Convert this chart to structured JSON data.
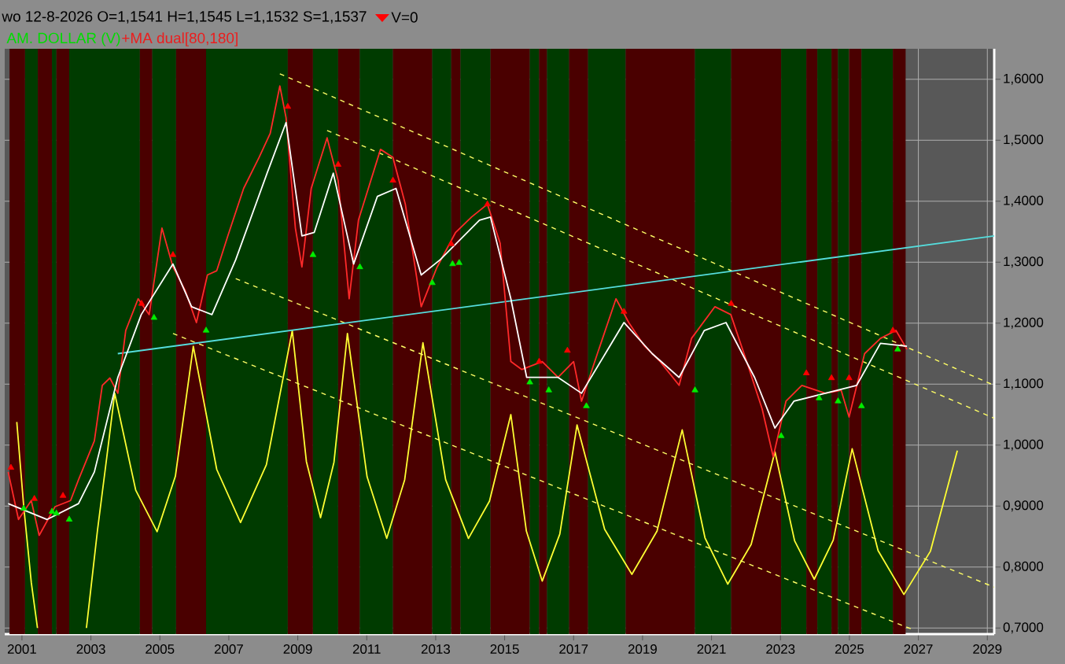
{
  "chart_data": {
    "type": "line",
    "title": "wo 12-8-2026  O=1,1541  H=1,1545  L=1,1532  S=1,1537",
    "subtitle": "AM. DOLLAR (V)",
    "annotations": [
      "V=0",
      "+MA dual[80,180]"
    ],
    "xlim": [
      2000.5,
      2029.2
    ],
    "ylim": [
      0.69,
      1.65
    ],
    "xticks": [
      2001,
      2003,
      2005,
      2007,
      2009,
      2011,
      2013,
      2015,
      2017,
      2019,
      2021,
      2023,
      2025,
      2027,
      2029
    ],
    "yticks": [
      {
        "value": 0.7,
        "label": "0,7000"
      },
      {
        "value": 0.8,
        "label": "0,8000"
      },
      {
        "value": 0.9,
        "label": "0,9000"
      },
      {
        "value": 1.0,
        "label": "1,0000"
      },
      {
        "value": 1.1,
        "label": "1,1000"
      },
      {
        "value": 1.2,
        "label": "1,2000"
      },
      {
        "value": 1.3,
        "label": "1,3000"
      },
      {
        "value": 1.4,
        "label": "1,4000"
      },
      {
        "value": 1.5,
        "label": "1,5000"
      },
      {
        "value": 1.6,
        "label": "1,6000"
      }
    ],
    "grid": true,
    "bands": [
      {
        "axis": "x",
        "from": 2000.64,
        "to": 2001.09,
        "color": "#4a0000"
      },
      {
        "axis": "x",
        "from": 2001.09,
        "to": 2001.46,
        "color": "#003b00"
      },
      {
        "axis": "x",
        "from": 2001.46,
        "to": 2001.87,
        "color": "#4a0000"
      },
      {
        "axis": "x",
        "from": 2001.87,
        "to": 2002.0,
        "color": "#003b00"
      },
      {
        "axis": "x",
        "from": 2002.0,
        "to": 2002.37,
        "color": "#4a0000"
      },
      {
        "axis": "x",
        "from": 2002.37,
        "to": 2004.42,
        "color": "#003b00"
      },
      {
        "axis": "x",
        "from": 2004.42,
        "to": 2004.78,
        "color": "#4a0000"
      },
      {
        "axis": "x",
        "from": 2004.78,
        "to": 2005.47,
        "color": "#003b00"
      },
      {
        "axis": "x",
        "from": 2005.47,
        "to": 2006.34,
        "color": "#4a0000"
      },
      {
        "axis": "x",
        "from": 2006.34,
        "to": 2008.71,
        "color": "#003b00"
      },
      {
        "axis": "x",
        "from": 2008.71,
        "to": 2009.44,
        "color": "#4a0000"
      },
      {
        "axis": "x",
        "from": 2009.44,
        "to": 2010.17,
        "color": "#003b00"
      },
      {
        "axis": "x",
        "from": 2010.17,
        "to": 2010.8,
        "color": "#4a0000"
      },
      {
        "axis": "x",
        "from": 2010.8,
        "to": 2011.76,
        "color": "#003b00"
      },
      {
        "axis": "x",
        "from": 2011.76,
        "to": 2012.9,
        "color": "#4a0000"
      },
      {
        "axis": "x",
        "from": 2012.9,
        "to": 2013.45,
        "color": "#003b00"
      },
      {
        "axis": "x",
        "from": 2013.45,
        "to": 2013.72,
        "color": "#4a0000"
      },
      {
        "axis": "x",
        "from": 2013.72,
        "to": 2014.59,
        "color": "#003b00"
      },
      {
        "axis": "x",
        "from": 2014.59,
        "to": 2015.73,
        "color": "#4a0000"
      },
      {
        "axis": "x",
        "from": 2015.73,
        "to": 2016.0,
        "color": "#003b00"
      },
      {
        "axis": "x",
        "from": 2016.0,
        "to": 2016.23,
        "color": "#4a0000"
      },
      {
        "axis": "x",
        "from": 2016.23,
        "to": 2016.87,
        "color": "#003b00"
      },
      {
        "axis": "x",
        "from": 2016.87,
        "to": 2017.42,
        "color": "#4a0000"
      },
      {
        "axis": "x",
        "from": 2017.42,
        "to": 2018.51,
        "color": "#003b00"
      },
      {
        "axis": "x",
        "from": 2018.51,
        "to": 2020.52,
        "color": "#4a0000"
      },
      {
        "axis": "x",
        "from": 2020.52,
        "to": 2021.57,
        "color": "#003b00"
      },
      {
        "axis": "x",
        "from": 2021.57,
        "to": 2023.02,
        "color": "#4a0000"
      },
      {
        "axis": "x",
        "from": 2023.02,
        "to": 2023.75,
        "color": "#003b00"
      },
      {
        "axis": "x",
        "from": 2023.75,
        "to": 2024.07,
        "color": "#4a0000"
      },
      {
        "axis": "x",
        "from": 2024.07,
        "to": 2024.48,
        "color": "#003b00"
      },
      {
        "axis": "x",
        "from": 2024.48,
        "to": 2024.67,
        "color": "#4a0000"
      },
      {
        "axis": "x",
        "from": 2024.67,
        "to": 2024.99,
        "color": "#003b00"
      },
      {
        "axis": "x",
        "from": 2024.99,
        "to": 2025.35,
        "color": "#4a0000"
      },
      {
        "axis": "x",
        "from": 2025.35,
        "to": 2026.26,
        "color": "#003b00"
      },
      {
        "axis": "x",
        "from": 2026.26,
        "to": 2026.63,
        "color": "#4a0000"
      }
    ],
    "series": [
      {
        "color": "#ffff33",
        "line_style": "solid",
        "x": [
          2000.85,
          2001.05,
          2001.27,
          2001.45,
          2002.2,
          2002.87,
          2003.19,
          2003.46,
          2003.69,
          2004.3,
          2004.92,
          2005.45,
          2005.97,
          2006.65,
          2007.34,
          2008.09,
          2008.84,
          2009.25,
          2009.66,
          2010.05,
          2010.44,
          2011.01,
          2011.58,
          2012.1,
          2012.63,
          2013.29,
          2013.95,
          2014.56,
          2015.18,
          2015.63,
          2016.09,
          2016.6,
          2017.1,
          2017.9,
          2018.69,
          2019.42,
          2020.15,
          2020.81,
          2021.47,
          2022.15,
          2022.84,
          2023.41,
          2023.98,
          2024.53,
          2025.08,
          2025.83,
          2026.58,
          2027.35,
          2028.13
        ],
        "values": [
          1.038,
          0.9,
          0.775,
          0.7,
          null,
          0.7,
          0.86,
          0.98,
          1.085,
          0.926,
          0.858,
          0.949,
          1.162,
          0.96,
          0.873,
          0.968,
          1.188,
          0.973,
          0.881,
          0.972,
          1.183,
          0.948,
          0.847,
          0.943,
          1.168,
          0.943,
          0.847,
          0.908,
          1.05,
          0.859,
          0.777,
          0.854,
          1.033,
          0.862,
          0.788,
          0.859,
          1.025,
          0.848,
          0.772,
          0.837,
          0.989,
          0.843,
          0.78,
          0.844,
          0.994,
          0.827,
          0.755,
          0.826,
          0.991
        ]
      },
      {
        "type": "line",
        "color": "#ffff66",
        "line_style": "dashed",
        "x": [
          2008.48,
          2029.2
        ],
        "values": [
          1.609,
          1.098
        ]
      },
      {
        "type": "line",
        "color": "#ffff66",
        "line_style": "dashed",
        "x": [
          2009.85,
          2029.2
        ],
        "values": [
          1.516,
          1.044
        ]
      },
      {
        "type": "line",
        "color": "#ffff66",
        "line_style": "dashed",
        "x": [
          2007.2,
          2029.2
        ],
        "values": [
          1.273,
          0.767
        ]
      },
      {
        "type": "line",
        "color": "#ffff66",
        "line_style": "dashed",
        "x": [
          2005.38,
          2026.81
        ],
        "values": [
          1.183,
          0.698
        ]
      },
      {
        "color": "#55dddd",
        "line_style": "solid",
        "x": [
          2003.78,
          2029.2
        ],
        "values": [
          1.15,
          1.343
        ]
      },
      {
        "color": "#ff2a2a",
        "line_style": "solid",
        "x": [
          2000.6,
          2000.9,
          2001.27,
          2001.5,
          2001.96,
          2002.41,
          2002.64,
          2003.1,
          2003.33,
          2003.55,
          2003.78,
          2004.01,
          2004.37,
          2004.69,
          2005.06,
          2005.38,
          2005.74,
          2006.06,
          2006.38,
          2006.65,
          2006.97,
          2007.43,
          2007.88,
          2008.2,
          2008.48,
          2008.66,
          2008.93,
          2009.12,
          2009.39,
          2009.85,
          2010.17,
          2010.49,
          2010.76,
          2011.4,
          2011.76,
          2012.12,
          2012.58,
          2013.04,
          2013.58,
          2014.04,
          2014.5,
          2014.87,
          2015.18,
          2015.5,
          2016.09,
          2016.55,
          2017.0,
          2017.23,
          2017.69,
          2018.23,
          2018.6,
          2019.06,
          2019.51,
          2020.06,
          2020.42,
          2021.1,
          2021.56,
          2022.02,
          2022.47,
          2022.79,
          2023.16,
          2023.62,
          2024.3,
          2024.76,
          2024.99,
          2025.44,
          2025.9,
          2026.35,
          2026.67
        ],
        "values": [
          0.956,
          0.878,
          0.909,
          0.852,
          0.899,
          0.909,
          0.943,
          1.007,
          1.098,
          1.11,
          1.085,
          1.188,
          1.24,
          1.214,
          1.356,
          1.292,
          1.253,
          1.201,
          1.279,
          1.286,
          1.343,
          1.421,
          1.472,
          1.511,
          1.589,
          1.537,
          1.356,
          1.292,
          1.421,
          1.504,
          1.434,
          1.24,
          1.369,
          1.485,
          1.472,
          1.395,
          1.227,
          1.292,
          1.349,
          1.374,
          1.395,
          1.331,
          1.137,
          1.124,
          1.137,
          1.111,
          1.137,
          1.072,
          1.15,
          1.24,
          1.201,
          1.162,
          1.137,
          1.098,
          1.175,
          1.227,
          1.214,
          1.137,
          1.059,
          0.981,
          1.072,
          1.098,
          1.085,
          1.09,
          1.046,
          1.15,
          1.175,
          1.188,
          1.157
        ]
      },
      {
        "color": "#ffffff",
        "line_style": "solid",
        "x": [
          2000.6,
          2001.73,
          2002.64,
          2003.1,
          2003.78,
          2004.46,
          2005.38,
          2005.92,
          2006.51,
          2007.2,
          2008.11,
          2008.66,
          2009.12,
          2009.48,
          2010.03,
          2010.62,
          2011.31,
          2011.85,
          2012.58,
          2013.13,
          2014.27,
          2014.59,
          2015.18,
          2015.64,
          2016.55,
          2017.23,
          2017.92,
          2018.46,
          2019.28,
          2020.06,
          2020.79,
          2021.42,
          2022.25,
          2022.84,
          2023.39,
          2024.3,
          2025.21,
          2025.9,
          2026.67
        ],
        "values": [
          0.904,
          0.878,
          0.904,
          0.956,
          1.111,
          1.214,
          1.297,
          1.227,
          1.214,
          1.304,
          1.446,
          1.529,
          1.343,
          1.349,
          1.446,
          1.297,
          1.408,
          1.421,
          1.279,
          1.304,
          1.369,
          1.374,
          1.24,
          1.111,
          1.111,
          1.085,
          1.15,
          1.201,
          1.15,
          1.111,
          1.188,
          1.201,
          1.111,
          1.028,
          1.072,
          1.085,
          1.098,
          1.167,
          1.162
        ]
      },
      {
        "type": "scatter",
        "color": "#00ee00",
        "marker": "triangle",
        "x": [
          2001.05,
          2001.87,
          2002.0,
          2002.37,
          2004.83,
          2006.34,
          2009.44,
          2010.8,
          2012.9,
          2013.49,
          2013.68,
          2015.73,
          2016.28,
          2017.37,
          2020.52,
          2023.02,
          2024.12,
          2024.67,
          2025.35,
          2026.4
        ],
        "values": [
          0.896,
          0.891,
          0.888,
          0.878,
          1.209,
          1.188,
          1.312,
          1.292,
          1.266,
          1.297,
          1.299,
          1.103,
          1.09,
          1.064,
          1.09,
          1.015,
          1.077,
          1.072,
          1.064,
          1.157
        ]
      },
      {
        "type": "scatter",
        "color": "#ff0000",
        "marker": "triangle",
        "x": [
          2000.68,
          2001.36,
          2002.19,
          2004.47,
          2005.38,
          2008.71,
          2010.17,
          2011.76,
          2013.45,
          2014.5,
          2016.0,
          2016.82,
          2018.46,
          2021.57,
          2023.75,
          2024.48,
          2024.99,
          2026.26
        ],
        "values": [
          0.963,
          0.912,
          0.917,
          1.232,
          1.312,
          1.555,
          1.46,
          1.434,
          1.33,
          1.395,
          1.137,
          1.155,
          1.219,
          1.232,
          1.118,
          1.11,
          1.11,
          1.188
        ]
      }
    ]
  }
}
